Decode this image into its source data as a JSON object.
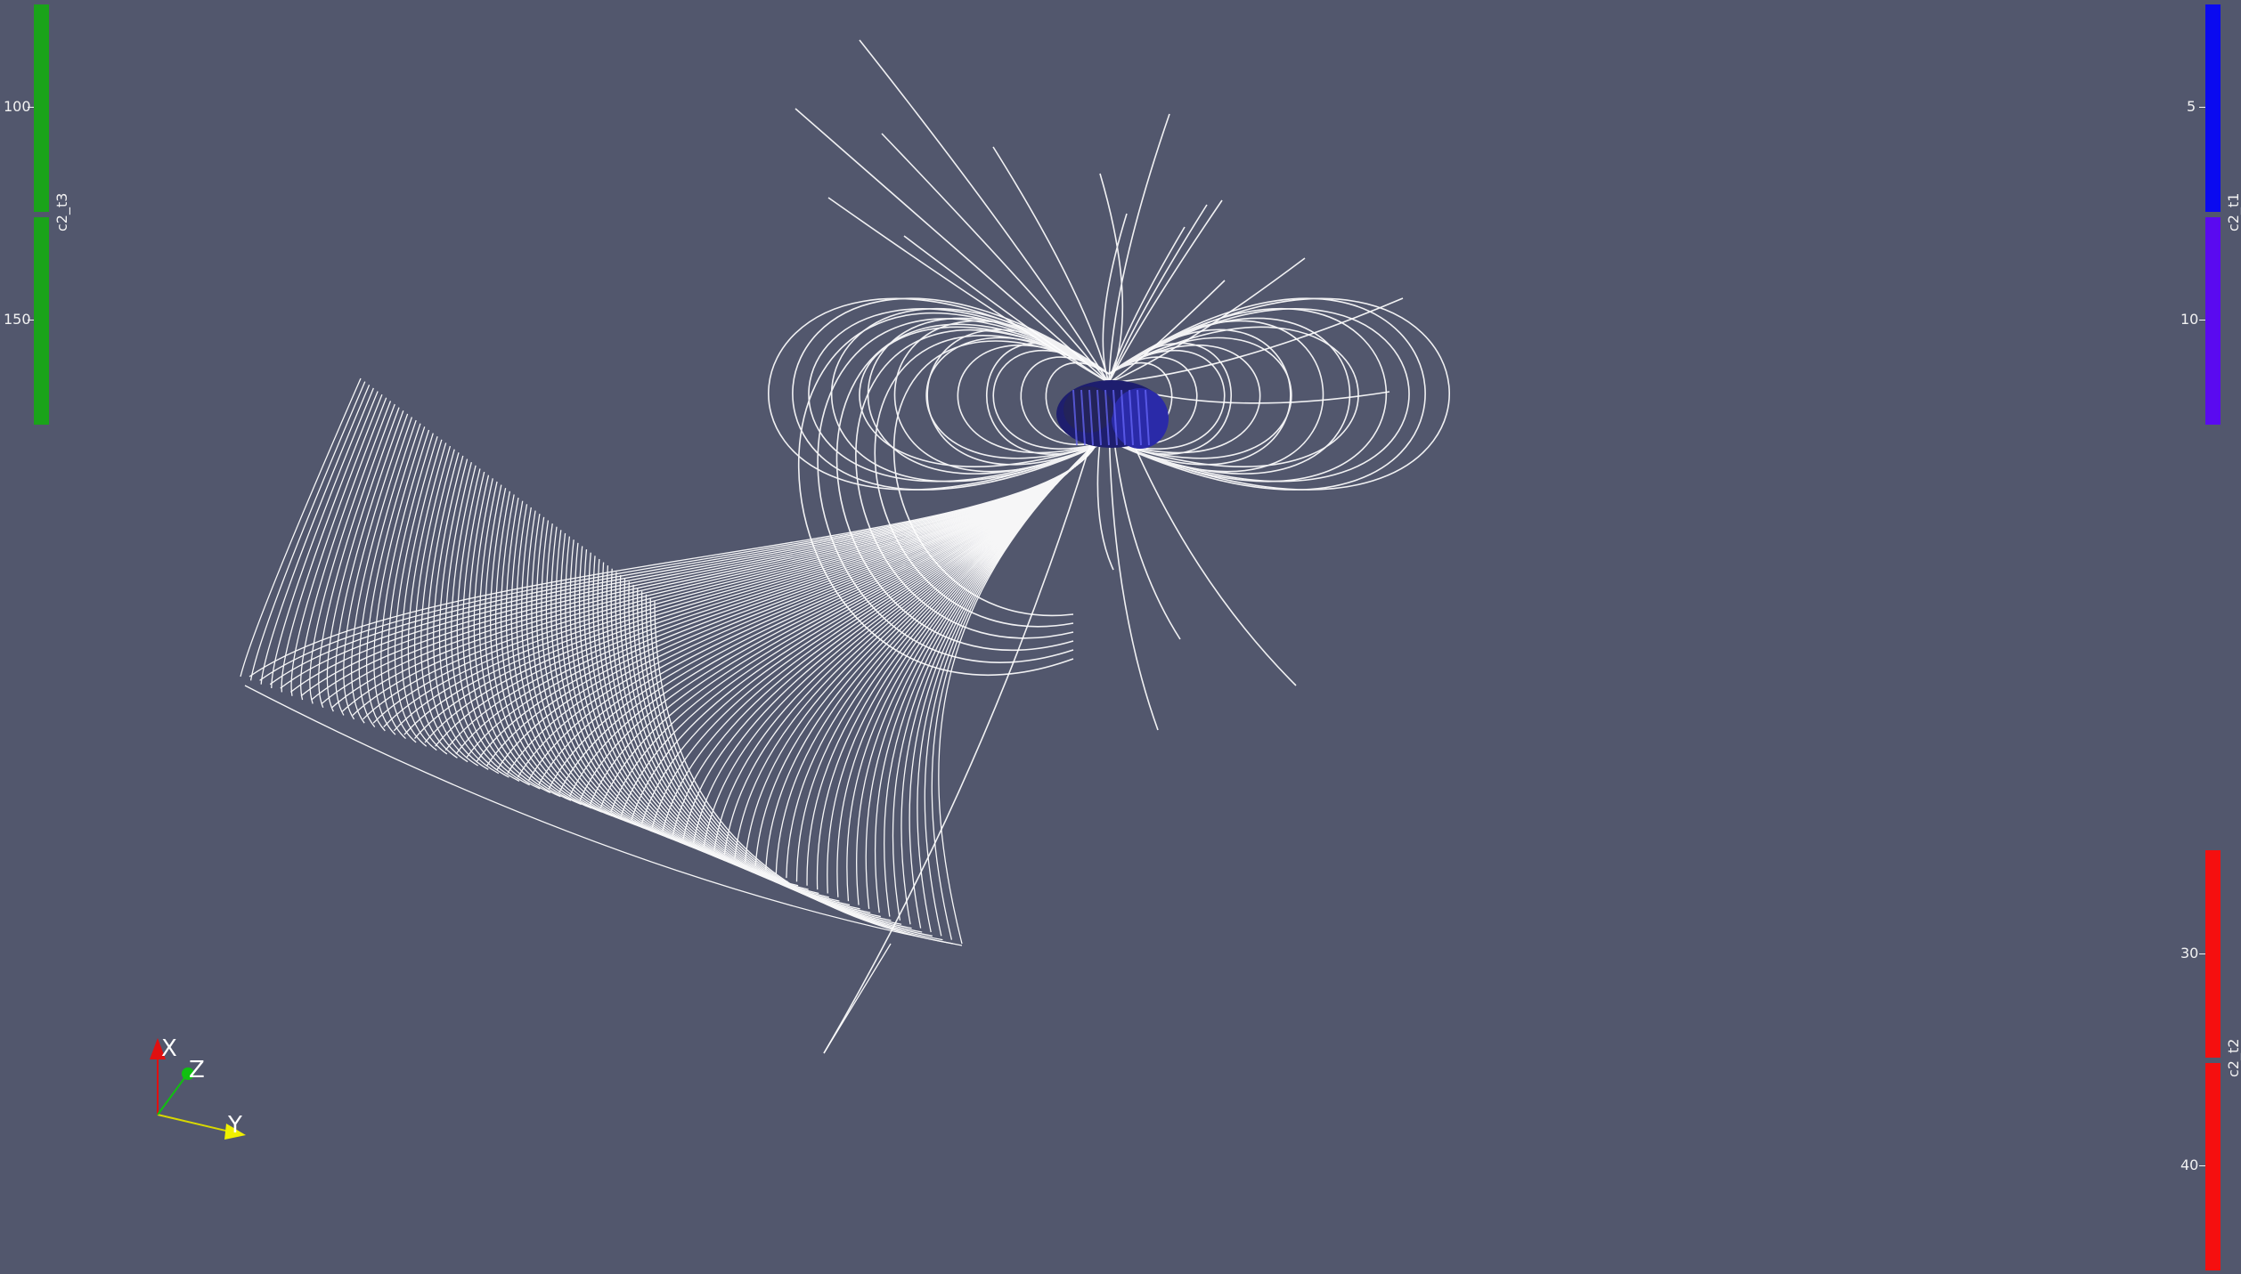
{
  "colorbars": {
    "c2_t3": {
      "title": "c2_t3",
      "ticks": [
        "100",
        "150"
      ],
      "colors": [
        "#1aa31a",
        "#1aa31a"
      ]
    },
    "c2_t1": {
      "title": "c2_t1",
      "ticks": [
        "5",
        "10"
      ],
      "colors": [
        "#0a0af0",
        "#5a0af0"
      ]
    },
    "c2_t2": {
      "title": "c2_t2",
      "ticks": [
        "30",
        "40"
      ],
      "colors": [
        "#f50f0f",
        "#f50f0f"
      ]
    }
  },
  "orientation_axes": {
    "x_label": "X",
    "y_label": "Y",
    "z_label": "Z",
    "x_color": "#e01010",
    "y_color": "#f0f000",
    "z_color": "#10c010"
  },
  "scene": {
    "background": "#52576d",
    "streamline_color": "#ffffff",
    "body_color": "#2a2aa8"
  }
}
